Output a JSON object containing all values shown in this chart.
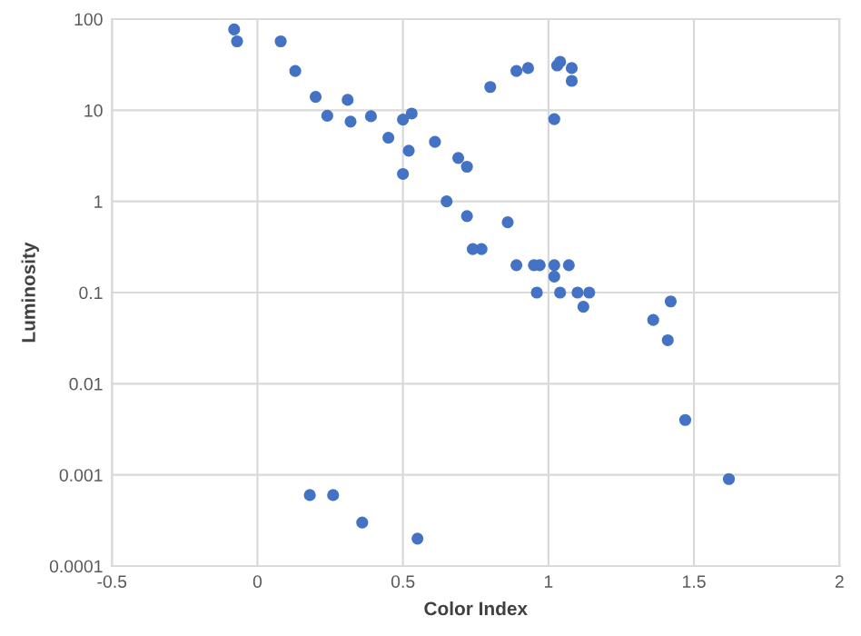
{
  "chart_data": {
    "type": "scatter",
    "xlabel": "Color Index",
    "ylabel": "Luminosity",
    "log": "y",
    "grid": true,
    "marker": "circle",
    "xlim": [
      -0.5,
      2
    ],
    "xticks": [
      -0.5,
      0,
      0.5,
      1,
      1.5,
      2
    ],
    "ylim": [
      0.0001,
      100
    ],
    "yticks": [
      0.0001,
      0.001,
      0.01,
      0.1,
      1,
      10,
      100
    ],
    "series": [
      {
        "color": "#4472c4",
        "x": [
          -0.08,
          -0.07,
          0.08,
          0.13,
          0.2,
          0.24,
          0.31,
          0.32,
          0.39,
          0.45,
          0.5,
          0.53,
          0.52,
          0.5,
          0.61,
          0.65,
          0.69,
          0.72,
          0.72,
          0.74,
          0.77,
          0.8,
          0.89,
          0.93,
          1.03,
          1.04,
          1.08,
          1.08,
          1.02,
          0.86,
          0.89,
          0.95,
          0.97,
          1.02,
          1.07,
          1.02,
          0.96,
          1.04,
          1.1,
          1.14,
          1.12,
          1.42,
          1.36,
          1.41,
          1.47,
          1.62,
          0.18,
          0.26,
          0.36,
          0.55
        ],
        "values": [
          77,
          57,
          57,
          27,
          14,
          8.7,
          13,
          7.5,
          8.6,
          5.0,
          7.9,
          9.2,
          3.6,
          2.0,
          4.5,
          1.0,
          3.0,
          2.4,
          0.69,
          0.3,
          0.3,
          18,
          27,
          29,
          31,
          34,
          29,
          21,
          8.0,
          0.59,
          0.2,
          0.2,
          0.2,
          0.2,
          0.2,
          0.15,
          0.1,
          0.1,
          0.1,
          0.1,
          0.07,
          0.08,
          0.05,
          0.03,
          0.004,
          0.0009,
          0.0006,
          0.0006,
          0.0003,
          0.0002
        ]
      }
    ]
  }
}
